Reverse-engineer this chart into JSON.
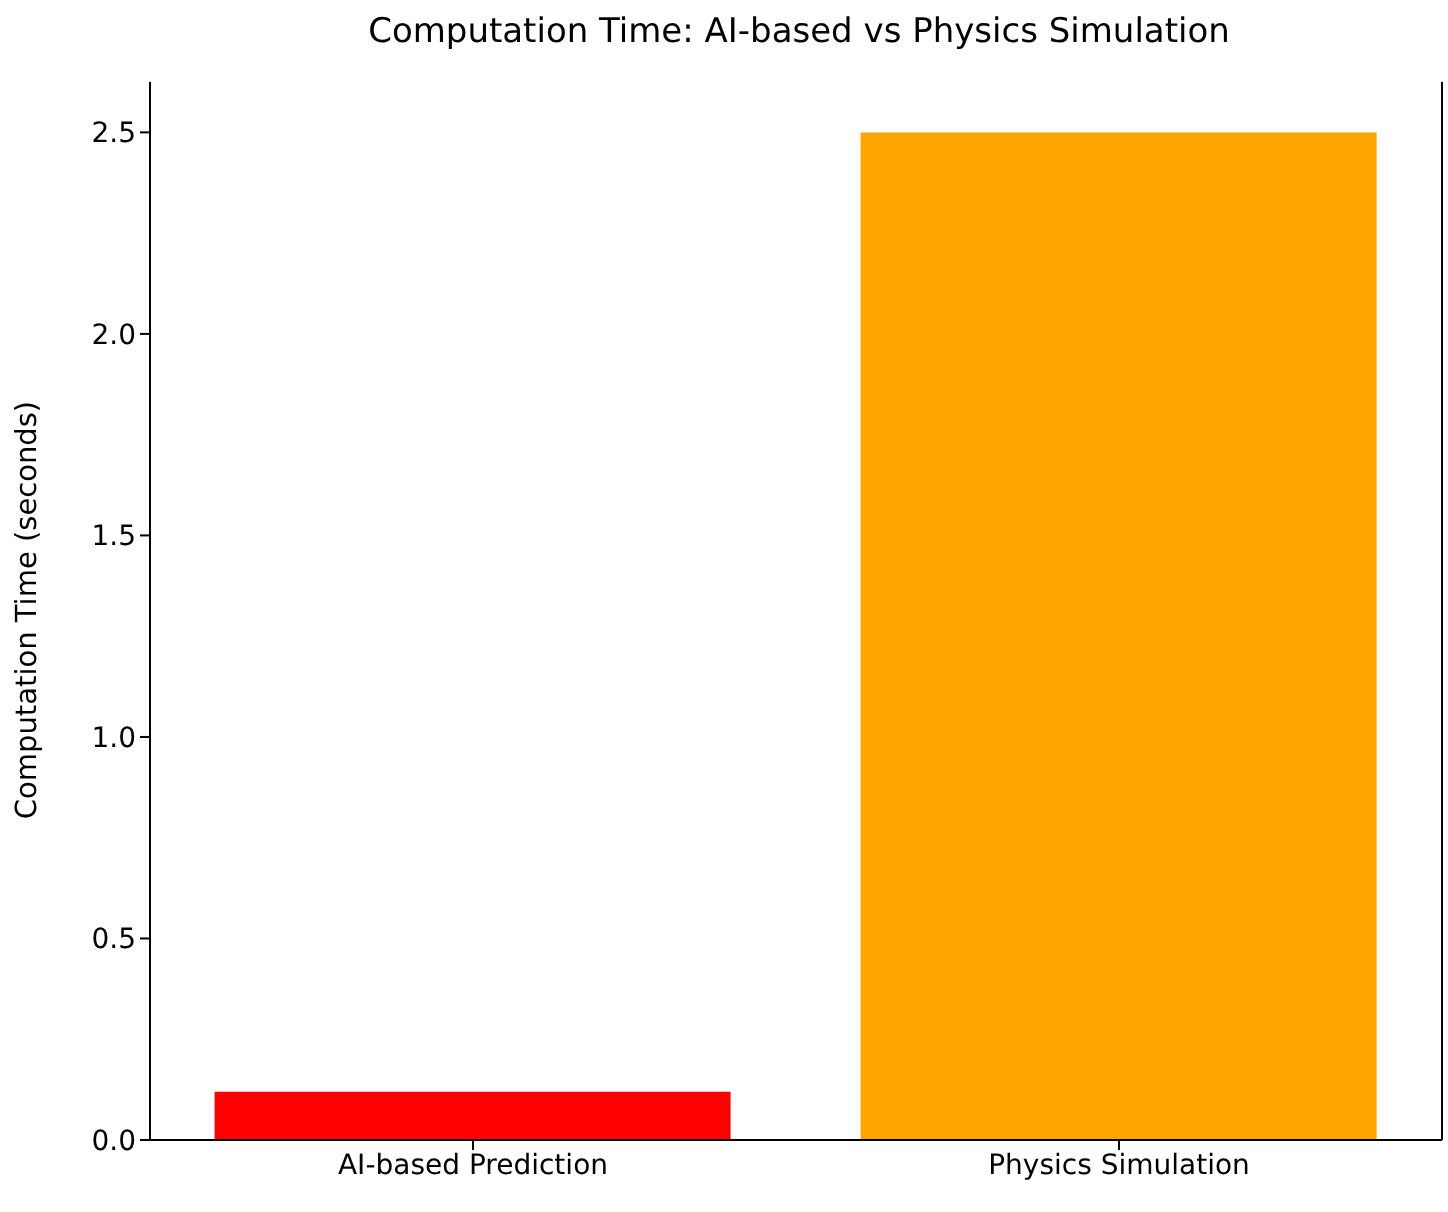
{
  "chart_data": {
    "type": "bar",
    "title": "Computation Time: AI-based vs Physics Simulation",
    "ylabel": "Computation Time (seconds)",
    "categories": [
      "AI-based Prediction",
      "Physics Simulation"
    ],
    "values": [
      0.12,
      2.5
    ],
    "colors": [
      "#ff0000",
      "#ffa500"
    ],
    "ylim": [
      0,
      2.625
    ],
    "yticks": [
      {
        "value": 0,
        "label": "0.0"
      },
      0.5,
      {
        "value": 1,
        "label": "1.0"
      },
      1.5,
      {
        "value": 2,
        "label": "2.0"
      },
      2.5
    ],
    "grid": false,
    "legend": false
  }
}
